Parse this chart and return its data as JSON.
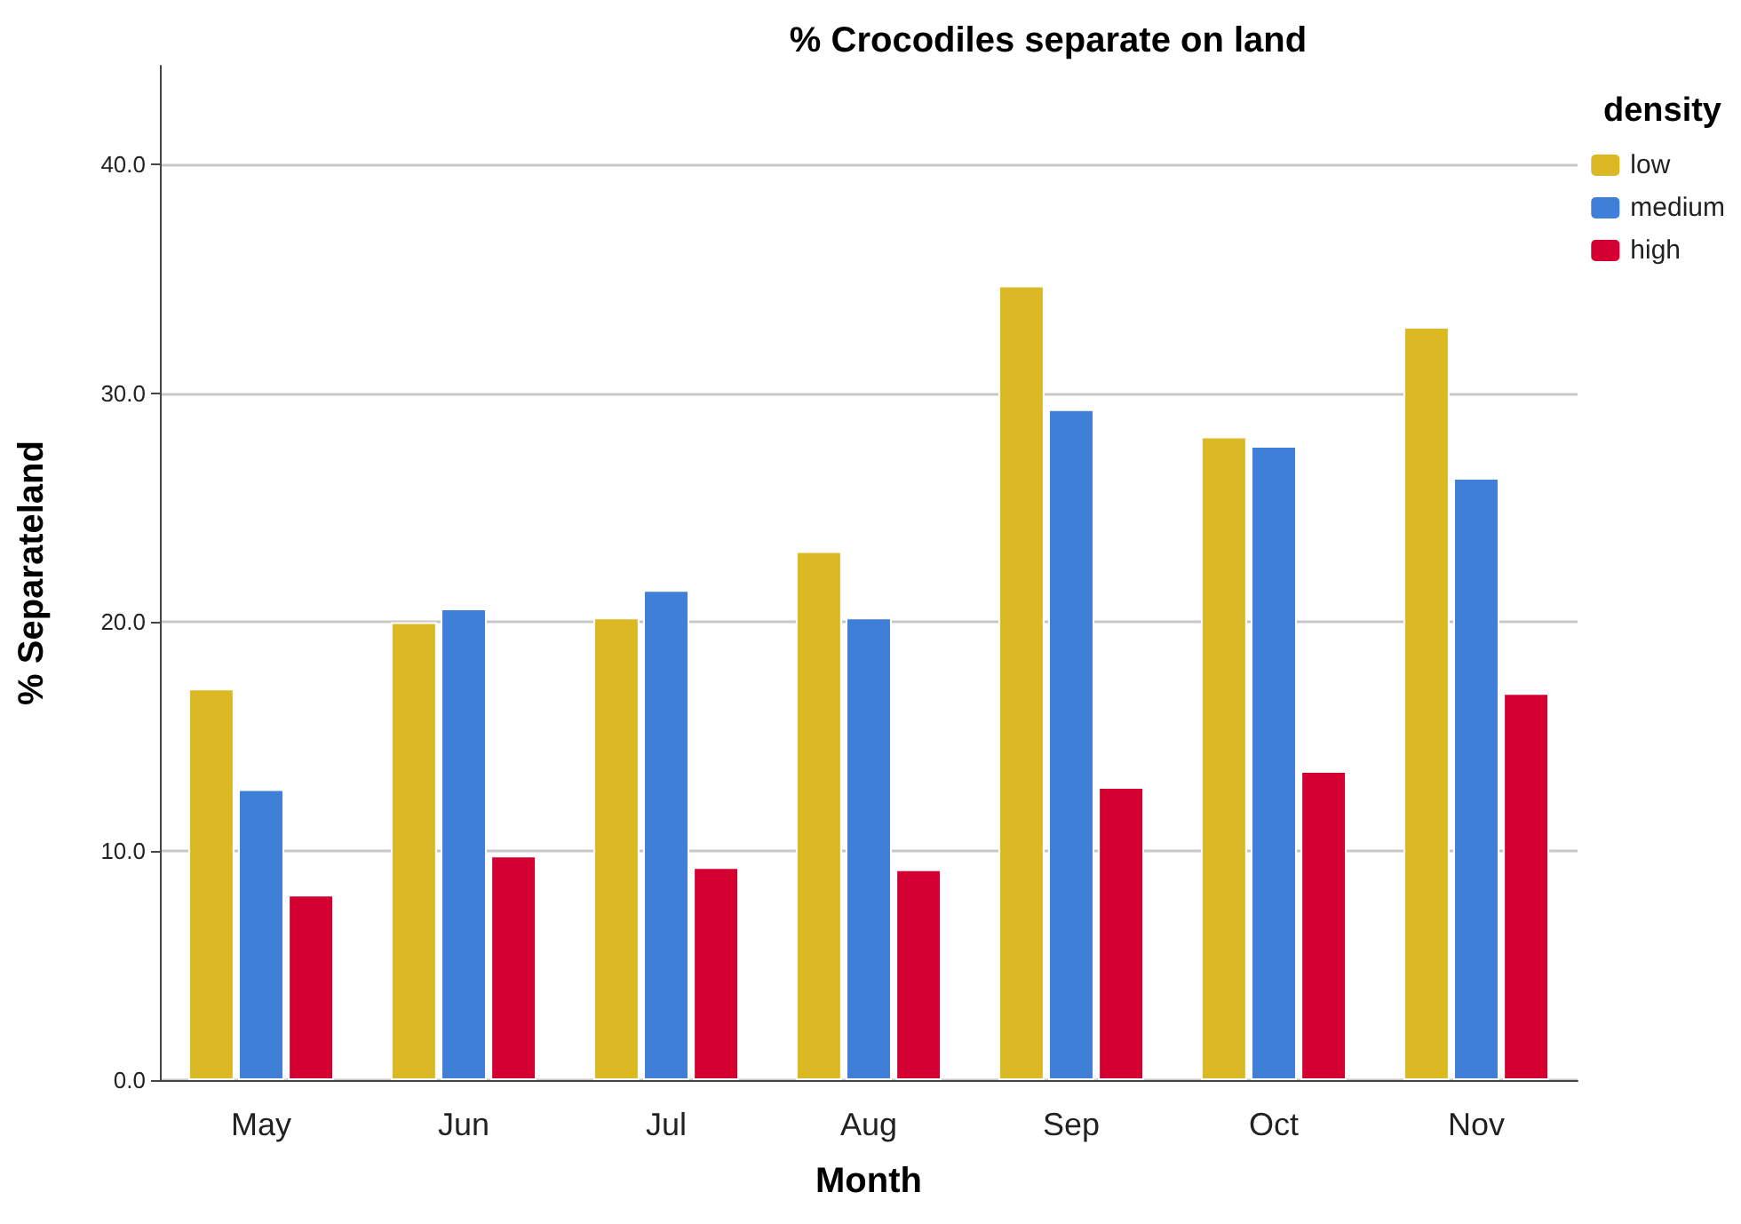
{
  "chart_data": {
    "type": "bar",
    "title": "% Crocodiles separate on land",
    "xlabel": "Month",
    "ylabel": "% Separateland",
    "legend_title": "density",
    "categories": [
      "May",
      "Jun",
      "Jul",
      "Aug",
      "Sep",
      "Oct",
      "Nov"
    ],
    "series": [
      {
        "name": "low",
        "color": "#dcb824",
        "values": [
          17.1,
          20.0,
          20.2,
          23.1,
          34.7,
          28.1,
          32.9
        ]
      },
      {
        "name": "medium",
        "color": "#3f7fd8",
        "values": [
          12.7,
          20.6,
          21.4,
          20.2,
          29.3,
          27.7,
          26.3
        ]
      },
      {
        "name": "high",
        "color": "#d50032",
        "values": [
          8.1,
          9.8,
          9.3,
          9.2,
          12.8,
          13.5,
          16.9
        ]
      }
    ],
    "ylim": [
      0,
      44.3
    ],
    "yticks": [
      {
        "value": 0,
        "label": "0.0"
      },
      {
        "value": 10,
        "label": "10.0"
      },
      {
        "value": 20,
        "label": "20.0"
      },
      {
        "value": 30,
        "label": "30.0"
      },
      {
        "value": 40,
        "label": "40.0"
      }
    ],
    "grid": "y",
    "legend": "top right"
  }
}
